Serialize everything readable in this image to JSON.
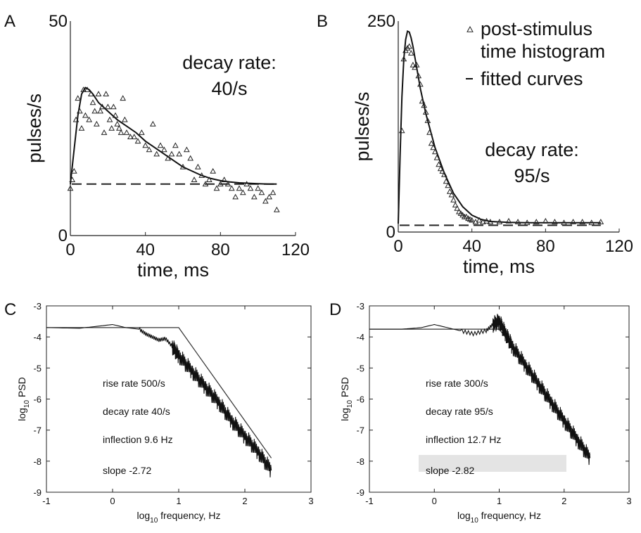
{
  "chart_data": [
    {
      "panel": "A",
      "type": "scatter",
      "xlabel": "time, ms",
      "ylabel": "pulses/s",
      "xlim": [
        0,
        120
      ],
      "ylim": [
        0,
        50
      ],
      "xticks": [
        "0",
        "40",
        "80",
        "120"
      ],
      "yticks": [
        "0",
        "50"
      ],
      "annotation": [
        "decay rate:",
        "40/s"
      ],
      "baseline": 12,
      "series": [
        {
          "x": [
            0,
            1,
            2,
            3,
            4,
            5,
            6,
            7,
            8,
            9,
            10,
            11,
            12,
            13,
            14,
            15,
            16,
            17,
            18,
            19,
            20,
            21,
            22,
            23,
            24,
            25,
            26,
            27,
            28,
            29,
            30,
            32,
            34,
            36,
            38,
            40,
            42,
            44,
            46,
            48,
            50,
            52,
            54,
            56,
            58,
            60,
            62,
            64,
            66,
            68,
            70,
            72,
            74,
            76,
            78,
            80,
            82,
            84,
            86,
            88,
            90,
            92,
            94,
            96,
            98,
            100,
            102,
            104,
            106,
            108,
            110
          ],
          "y": [
            11,
            13,
            15,
            27,
            32,
            29,
            25,
            34,
            28,
            34,
            27,
            33,
            31,
            29,
            26,
            33,
            29,
            30,
            24,
            33,
            30,
            27,
            25,
            30,
            28,
            26,
            25,
            24,
            32,
            27,
            24,
            23,
            23,
            22,
            24,
            21,
            20,
            26,
            19,
            21,
            20,
            18,
            19,
            21,
            19,
            16,
            20,
            18,
            13,
            16,
            14,
            12,
            13,
            15,
            11,
            12,
            13,
            12,
            11,
            9,
            11,
            10,
            12,
            11,
            9,
            11,
            10,
            8,
            9,
            10,
            6
          ]
        },
        {
          "x": [
            0,
            2,
            4,
            6,
            8,
            10,
            12,
            15,
            20,
            25,
            30,
            35,
            40,
            45,
            50,
            55,
            60,
            65,
            70,
            75,
            80,
            85,
            90,
            95,
            100,
            105,
            110
          ],
          "y": [
            12,
            20,
            28,
            33,
            34.5,
            34,
            33,
            31,
            29,
            27,
            25.5,
            24,
            22,
            20.5,
            19,
            17.5,
            16,
            15,
            14,
            13.3,
            12.8,
            12.5,
            12.3,
            12.2,
            12.1,
            12,
            12
          ]
        }
      ]
    },
    {
      "panel": "B",
      "type": "scatter",
      "xlabel": "time, ms",
      "ylabel": "pulses/s",
      "xlim": [
        0,
        120
      ],
      "ylim": [
        0,
        250
      ],
      "xticks": [
        "0",
        "40",
        "80",
        "120"
      ],
      "yticks": [
        "0",
        "250"
      ],
      "annotation": [
        "decay rate:",
        "95/s"
      ],
      "legend": [
        "post-stimulus",
        "time histogram",
        "fitted curves"
      ],
      "baseline": 8,
      "series": [
        {
          "x": [
            2,
            3,
            4,
            5,
            6,
            7,
            8,
            9,
            10,
            11,
            12,
            13,
            14,
            15,
            16,
            17,
            18,
            19,
            20,
            21,
            22,
            23,
            24,
            25,
            26,
            27,
            28,
            29,
            30,
            31,
            32,
            33,
            34,
            35,
            36,
            37,
            38,
            39,
            40,
            42,
            44,
            46,
            48,
            50,
            55,
            60,
            65,
            70,
            75,
            80,
            85,
            90,
            95,
            100,
            105,
            110
          ],
          "y": [
            120,
            205,
            215,
            218,
            220,
            212,
            198,
            195,
            198,
            185,
            175,
            155,
            150,
            142,
            132,
            118,
            105,
            100,
            95,
            88,
            80,
            75,
            72,
            68,
            60,
            55,
            48,
            44,
            38,
            32,
            28,
            24,
            22,
            20,
            18,
            18,
            16,
            15,
            14,
            12,
            14,
            12,
            13,
            12,
            12,
            13,
            12,
            11,
            12,
            13,
            12,
            11,
            12,
            12,
            11,
            12
          ]
        },
        {
          "x": [
            0,
            1,
            2,
            3,
            4,
            5,
            6,
            7,
            8,
            10,
            12,
            15,
            20,
            25,
            30,
            35,
            40,
            45,
            50,
            60,
            70,
            80,
            90,
            100,
            110
          ],
          "y": [
            10,
            90,
            160,
            205,
            228,
            238,
            237,
            230,
            220,
            195,
            170,
            140,
            100,
            70,
            46,
            30,
            20,
            15,
            12.5,
            11.5,
            11,
            11,
            11,
            11,
            11
          ]
        }
      ]
    },
    {
      "panel": "C",
      "type": "line",
      "xlabel": "log₁₀ frequency, Hz",
      "ylabel": "log₁₀ PSD",
      "xlim": [
        -1,
        3
      ],
      "ylim": [
        -9,
        -3
      ],
      "xticks": [
        "-1",
        "0",
        "1",
        "2",
        "3"
      ],
      "yticks": [
        "-3",
        "-4",
        "-5",
        "-6",
        "-7",
        "-8",
        "-9"
      ],
      "annotations": [
        "rise rate 500/s",
        "decay rate 40/s",
        "inflection 9.6 Hz",
        "slope -2.72"
      ],
      "series": [
        {
          "x": [
            -1,
            -0.5,
            -0.2,
            0,
            0.2,
            0.4,
            0.5,
            0.6,
            0.7,
            0.8,
            0.9,
            1.0,
            1.2,
            1.4,
            1.6,
            1.8,
            2.0,
            2.2,
            2.4
          ],
          "y": [
            -3.7,
            -3.72,
            -3.65,
            -3.6,
            -3.7,
            -3.75,
            -3.9,
            -4.0,
            -4.1,
            -4.05,
            -4.3,
            -4.6,
            -5.1,
            -5.6,
            -6.1,
            -6.7,
            -7.2,
            -7.7,
            -8.3
          ]
        },
        {
          "x": [
            -1,
            0,
            1,
            1.3,
            1.6,
            1.8,
            2.0,
            2.2,
            2.4
          ],
          "y": [
            -3.7,
            -3.7,
            -3.7,
            -4.6,
            -5.5,
            -6.1,
            -6.7,
            -7.3,
            -7.9
          ]
        }
      ]
    },
    {
      "panel": "D",
      "type": "line",
      "xlabel": "log₁₀ frequency, Hz",
      "ylabel": "log₁₀ PSD",
      "xlim": [
        -1,
        3
      ],
      "ylim": [
        -9,
        -3
      ],
      "xticks": [
        "-1",
        "0",
        "1",
        "2",
        "3"
      ],
      "yticks": [
        "-3",
        "-4",
        "-5",
        "-6",
        "-7",
        "-8",
        "-9"
      ],
      "annotations": [
        "rise rate 300/s",
        "decay rate 95/s",
        "inflection 12.7 Hz",
        "slope -2.82"
      ],
      "series": [
        {
          "x": [
            -1,
            -0.5,
            -0.2,
            0,
            0.2,
            0.4,
            0.6,
            0.8,
            0.9,
            1.0,
            1.1,
            1.2,
            1.4,
            1.6,
            1.8,
            2.0,
            2.2,
            2.4
          ],
          "y": [
            -3.75,
            -3.75,
            -3.7,
            -3.6,
            -3.7,
            -3.8,
            -3.9,
            -3.8,
            -3.6,
            -3.5,
            -3.9,
            -4.3,
            -4.9,
            -5.5,
            -6.1,
            -6.7,
            -7.3,
            -7.9
          ]
        },
        {
          "x": [
            -1,
            0,
            1,
            1.2,
            1.4,
            1.6,
            1.8,
            2.0,
            2.2,
            2.4
          ],
          "y": [
            -3.75,
            -3.75,
            -3.75,
            -4.3,
            -4.9,
            -5.5,
            -6.1,
            -6.6,
            -7.2,
            -7.8
          ]
        }
      ]
    }
  ]
}
